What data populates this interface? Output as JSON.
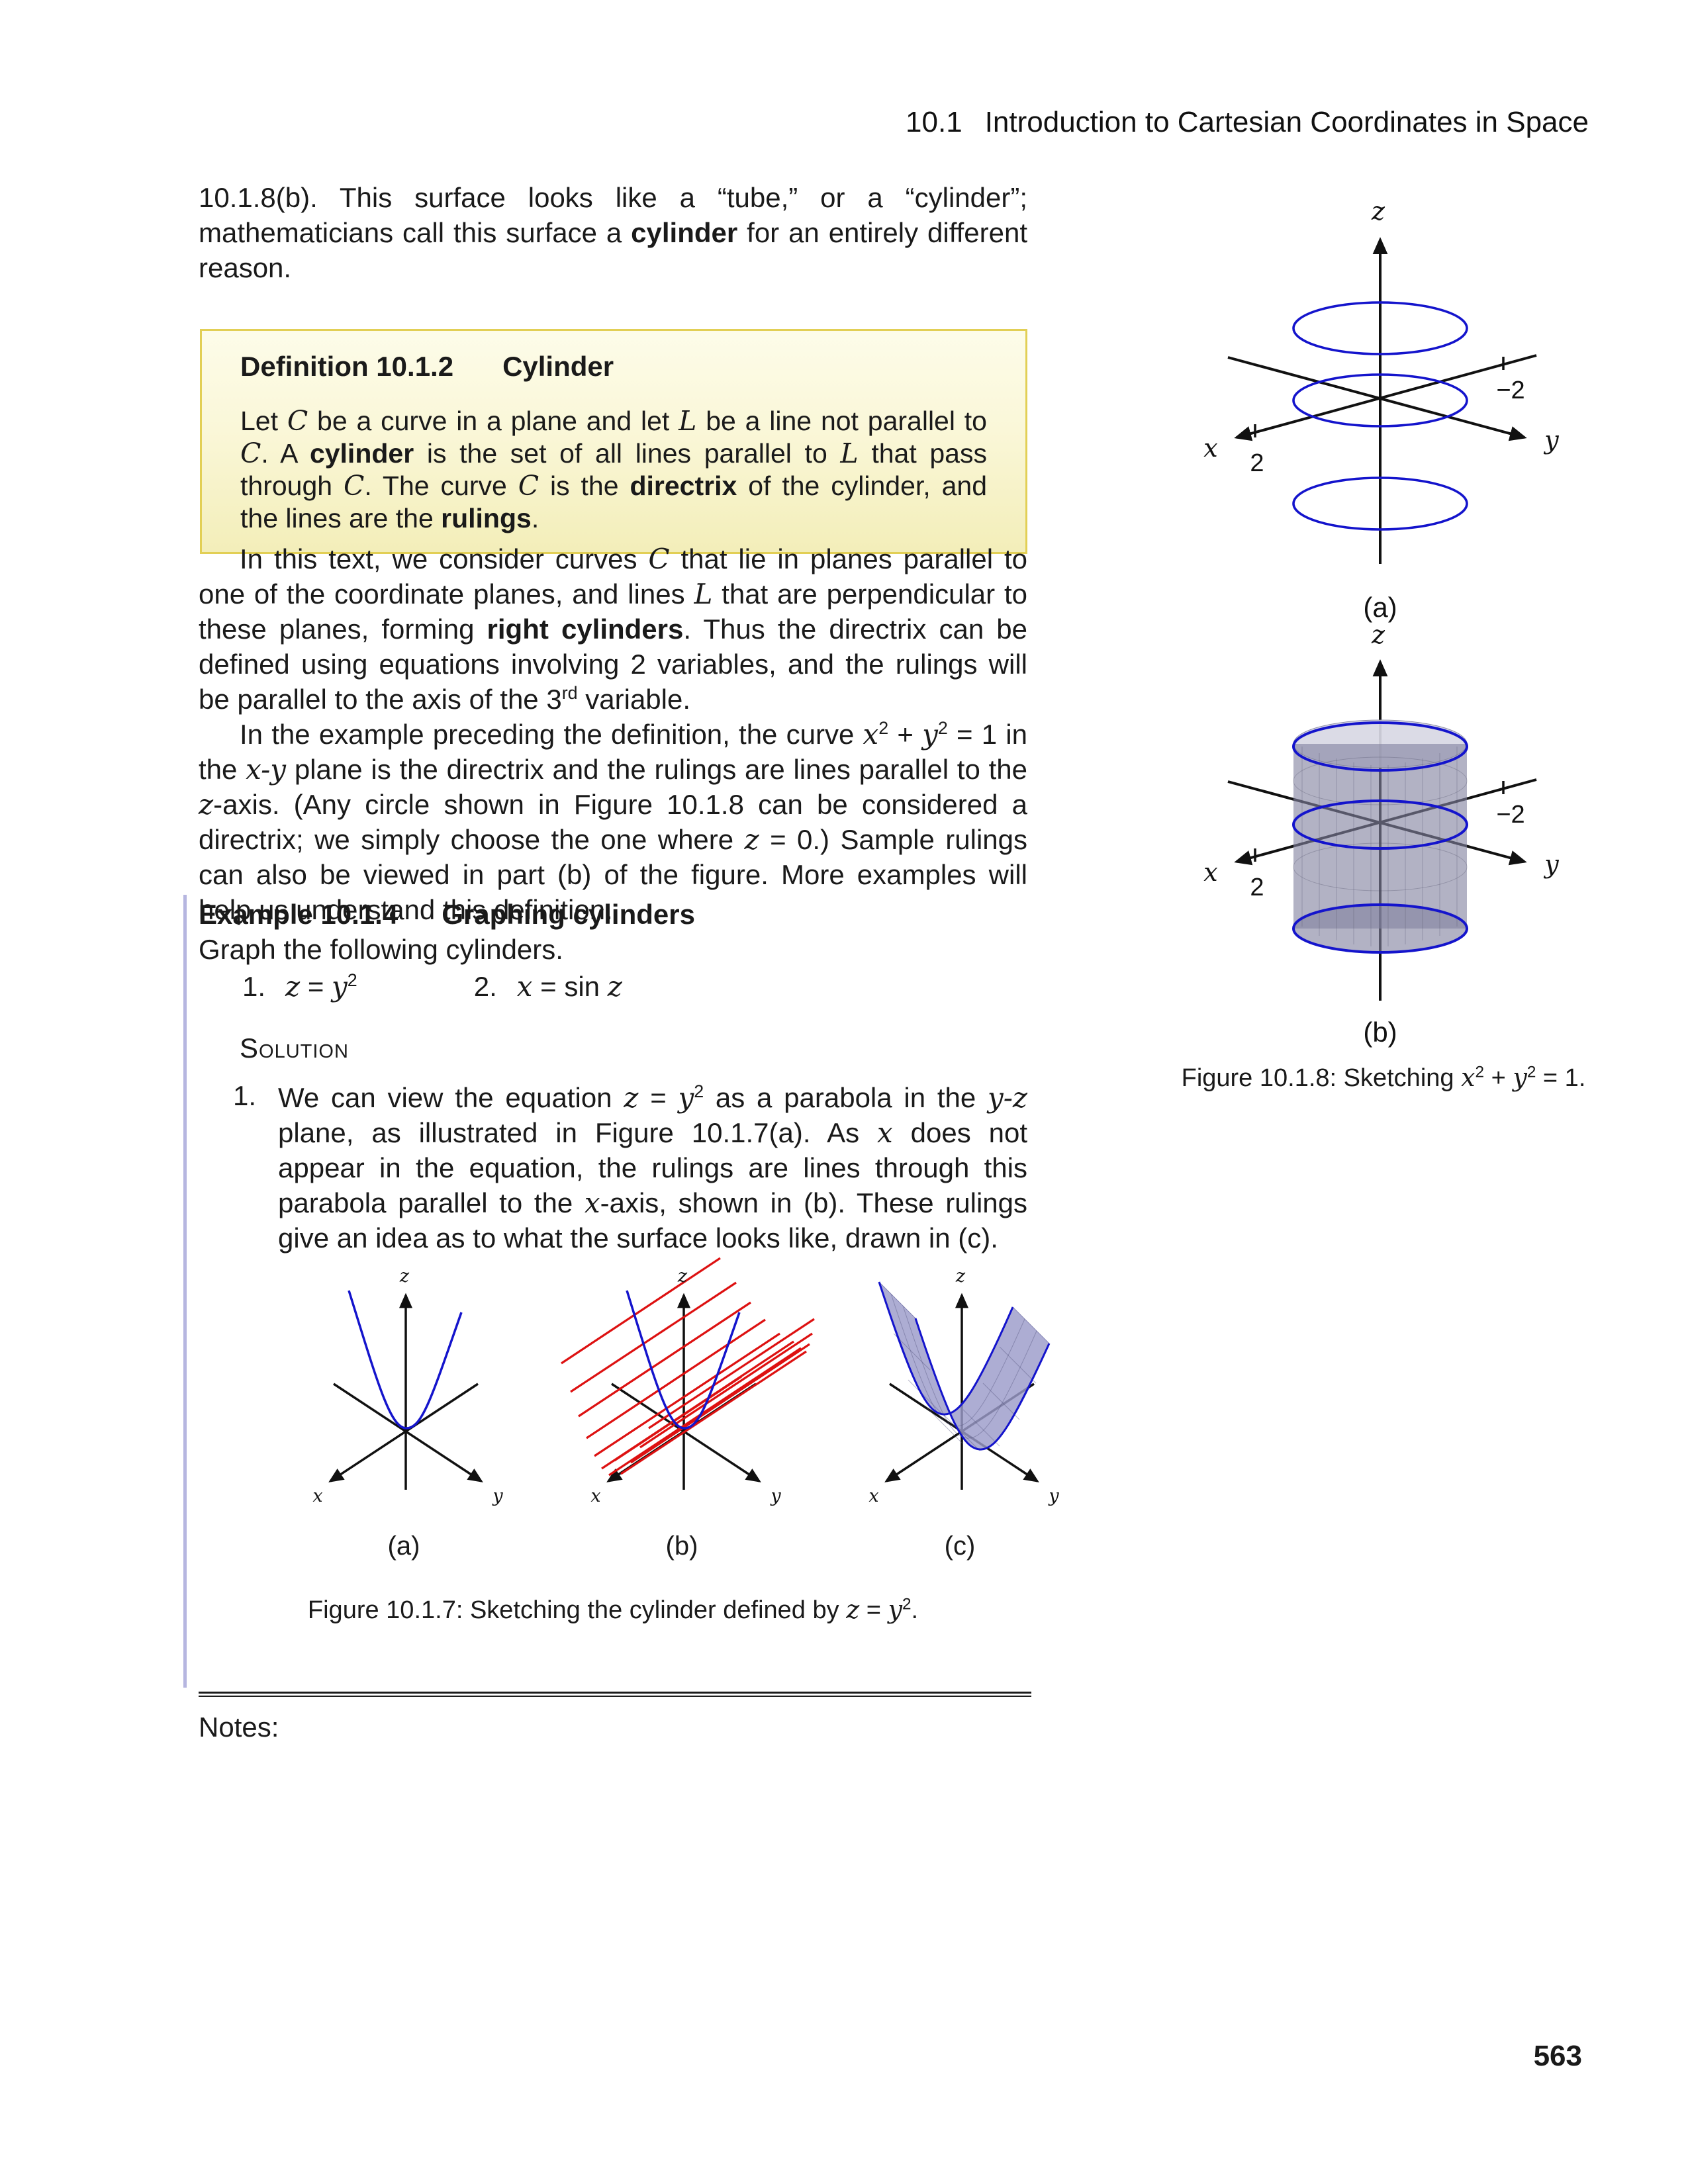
{
  "header": {
    "section": "10.1",
    "title": "Introduction to Cartesian Coordinates in Space"
  },
  "intro_para": [
    {
      "t": "10.1.8(b). This surface looks like a “tube,” or a “cylinder”; mathematicians call this surface a "
    },
    {
      "t": "cylinder",
      "s": "b"
    },
    {
      "t": " for an entirely different reason."
    }
  ],
  "definition": {
    "label": "Definition 10.1.2",
    "name": "Cylinder",
    "body": [
      {
        "t": "Let "
      },
      {
        "t": "C",
        "s": "i"
      },
      {
        "t": " be a curve in a plane and let "
      },
      {
        "t": "L",
        "s": "i"
      },
      {
        "t": " be a line not parallel to "
      },
      {
        "t": "C",
        "s": "i"
      },
      {
        "t": ". A "
      },
      {
        "t": "cylinder",
        "s": "b"
      },
      {
        "t": " is the set of all lines parallel to "
      },
      {
        "t": "L",
        "s": "i"
      },
      {
        "t": " that pass through "
      },
      {
        "t": "C",
        "s": "i"
      },
      {
        "t": ". The curve "
      },
      {
        "t": "C",
        "s": "i"
      },
      {
        "t": " is the "
      },
      {
        "t": "directrix",
        "s": "b"
      },
      {
        "t": " of the cylinder, and the lines are the "
      },
      {
        "t": "rulings",
        "s": "b"
      },
      {
        "t": "."
      }
    ]
  },
  "para_text": [
    {
      "t": "In this text, we consider curves "
    },
    {
      "t": "C",
      "s": "i"
    },
    {
      "t": " that lie in planes parallel to one of the coordinate planes, and lines "
    },
    {
      "t": "L",
      "s": "i"
    },
    {
      "t": " that are perpendicular to these planes, forming "
    },
    {
      "t": "right cylinders",
      "s": "b"
    },
    {
      "t": ". Thus the directrix can be defined using equations involving 2 variables, and the rulings will be parallel to the axis of the 3"
    },
    {
      "t": "rd",
      "s": "sup"
    },
    {
      "t": " variable."
    }
  ],
  "para_example": [
    {
      "t": "In the example preceding the definition, the curve "
    },
    {
      "t": "x",
      "s": "i"
    },
    {
      "t": "2",
      "s": "sup"
    },
    {
      "t": " + "
    },
    {
      "t": "y",
      "s": "i"
    },
    {
      "t": "2",
      "s": "sup"
    },
    {
      "t": " = 1 in the "
    },
    {
      "t": "x-y",
      "s": "i"
    },
    {
      "t": " plane is the directrix and the rulings are lines parallel to the "
    },
    {
      "t": "z",
      "s": "i"
    },
    {
      "t": "-axis. (Any circle shown in Figure 10.1.8 can be considered a directrix; we simply choose the one where "
    },
    {
      "t": "z",
      "s": "i"
    },
    {
      "t": " = 0.) Sample rulings can also be viewed in part (b) of the figure. More examples will help us understand this definition."
    }
  ],
  "example": {
    "label": "Example 10.1.4",
    "title": "Graphing cylinders",
    "intro": "Graph the following cylinders.",
    "items": [
      {
        "num": "1.",
        "expr": [
          {
            "t": "z",
            "s": "i"
          },
          {
            "t": " = "
          },
          {
            "t": "y",
            "s": "i"
          },
          {
            "t": "2",
            "s": "sup"
          }
        ]
      },
      {
        "num": "2.",
        "expr": [
          {
            "t": "x",
            "s": "i"
          },
          {
            "t": " = sin "
          },
          {
            "t": "z",
            "s": "i"
          }
        ]
      }
    ]
  },
  "solution": {
    "heading": "Solution",
    "item_number": "1.",
    "body": [
      {
        "t": "We can view the equation "
      },
      {
        "t": "z",
        "s": "i"
      },
      {
        "t": " = "
      },
      {
        "t": "y",
        "s": "i"
      },
      {
        "t": "2",
        "s": "sup"
      },
      {
        "t": " as a parabola in the "
      },
      {
        "t": "y-z",
        "s": "i"
      },
      {
        "t": " plane, as illustrated in Figure 10.1.7(a). As "
      },
      {
        "t": "x",
        "s": "i"
      },
      {
        "t": " does not appear in the equation, the rulings are lines through this parabola parallel to the "
      },
      {
        "t": "x",
        "s": "i"
      },
      {
        "t": "-axis, shown in (b). These rulings give an idea as to what the surface looks like, drawn in (c)."
      }
    ]
  },
  "figure7": {
    "axis_labels": {
      "x": "x",
      "y": "y",
      "z": "z"
    },
    "sub_labels": [
      "(a)",
      "(b)",
      "(c)"
    ],
    "caption": [
      {
        "t": "Figure 10.1.7: Sketching the cylinder defined by "
      },
      {
        "t": "z",
        "s": "i"
      },
      {
        "t": " = "
      },
      {
        "t": "y",
        "s": "i"
      },
      {
        "t": "2",
        "s": "sup"
      },
      {
        "t": "."
      }
    ]
  },
  "figure8": {
    "axis_labels": {
      "x": "x",
      "y": "y",
      "z": "z"
    },
    "ticks": {
      "x_positive": "2",
      "x_negative": "−2"
    },
    "sub_labels": [
      "(a)",
      "(b)"
    ],
    "caption": [
      {
        "t": "Figure 10.1.8: Sketching "
      },
      {
        "t": "x",
        "s": "i"
      },
      {
        "t": "2",
        "s": "sup"
      },
      {
        "t": " + "
      },
      {
        "t": "y",
        "s": "i"
      },
      {
        "t": "2",
        "s": "sup"
      },
      {
        "t": " = 1."
      }
    ]
  },
  "notes_label": "Notes:",
  "page_number": "563",
  "colors": {
    "curve_blue": "#1414cc",
    "ruling_red": "#dd1111",
    "surface_purple": "#9b9bc9",
    "cylinder_gray": "#83839f",
    "definition_border": "#e2cf55",
    "definition_bg_top": "#fdfce9",
    "definition_bg_bottom": "#f3eeb9",
    "example_bar": "#b6b6e0"
  }
}
